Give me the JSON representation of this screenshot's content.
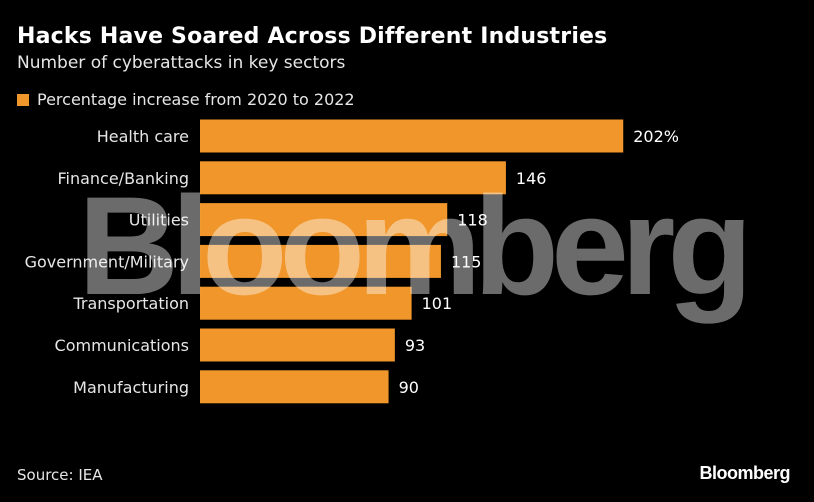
{
  "chart_data": {
    "type": "bar",
    "orientation": "horizontal",
    "title": "Hacks Have Soared Across Different Industries",
    "subtitle": "Number of cyberattacks in key sectors",
    "legend": [
      "Percentage increase from 2020 to 2022"
    ],
    "categories": [
      "Health care",
      "Finance/Banking",
      "Utilities",
      "Government/Military",
      "Transportation",
      "Communications",
      "Manufacturing"
    ],
    "values": [
      202,
      146,
      118,
      115,
      101,
      93,
      90
    ],
    "value_labels": [
      "202%",
      "146",
      "118",
      "115",
      "101",
      "93",
      "90"
    ],
    "xlim": [
      0,
      210
    ],
    "bar_color": "#f0962a"
  },
  "footer": {
    "source": "Source: IEA",
    "brand": "Bloomberg"
  },
  "watermark": "Bloomberg"
}
